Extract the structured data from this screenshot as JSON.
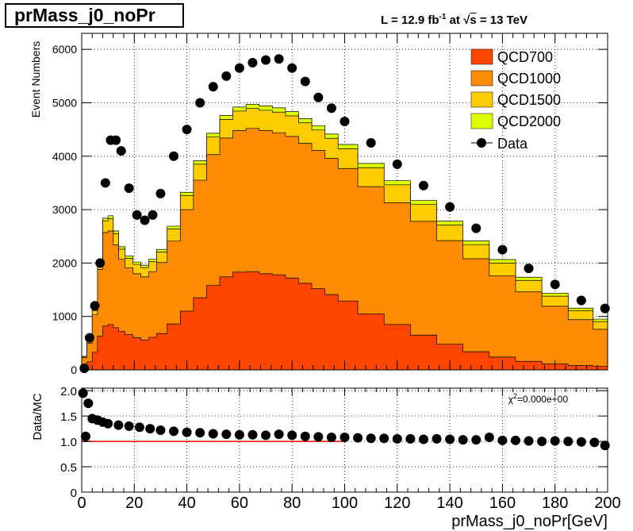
{
  "header": {
    "title": "prMass_j0_noPr",
    "lumi_prefix": "L = 12.9 fb",
    "lumi_exp": "-1",
    "lumi_mid": " at ",
    "lumi_sqrt": "s",
    "lumi_suffix": " = 13 TeV"
  },
  "chart_data": [
    {
      "type": "area",
      "ylabel": "Event Numbers",
      "xlim": [
        0,
        200
      ],
      "ylim": [
        0,
        6300
      ],
      "yticks": [
        0,
        1000,
        2000,
        3000,
        4000,
        5000,
        6000
      ],
      "legend_position": "top-right",
      "stacked": true,
      "x": [
        1,
        3,
        5,
        7,
        9,
        11,
        13,
        15,
        18,
        21,
        24,
        27,
        30,
        35,
        40,
        45,
        50,
        55,
        60,
        65,
        70,
        75,
        80,
        85,
        90,
        95,
        100,
        110,
        120,
        130,
        140,
        150,
        160,
        170,
        180,
        190,
        199
      ],
      "series": [
        {
          "name": "QCD700",
          "color": "#ff4500",
          "values": [
            80,
            150,
            330,
            630,
            820,
            850,
            790,
            720,
            660,
            600,
            560,
            610,
            680,
            860,
            1100,
            1350,
            1580,
            1740,
            1830,
            1840,
            1800,
            1780,
            1720,
            1620,
            1520,
            1410,
            1290,
            1050,
            850,
            650,
            480,
            340,
            240,
            160,
            110,
            80,
            70
          ]
        },
        {
          "name": "QCD1000",
          "color": "#ff8c00",
          "values": [
            150,
            350,
            700,
            1250,
            1750,
            1750,
            1550,
            1350,
            1250,
            1200,
            1180,
            1230,
            1330,
            1550,
            1900,
            2200,
            2450,
            2600,
            2650,
            2680,
            2680,
            2660,
            2650,
            2620,
            2590,
            2550,
            2480,
            2380,
            2280,
            2130,
            1940,
            1740,
            1520,
            1300,
            1080,
            860,
            690
          ]
        },
        {
          "name": "QCD1500",
          "color": "#ffcc00",
          "values": [
            20,
            40,
            80,
            140,
            220,
            230,
            210,
            190,
            180,
            175,
            175,
            185,
            195,
            225,
            265,
            300,
            330,
            350,
            365,
            375,
            380,
            385,
            385,
            385,
            380,
            375,
            370,
            355,
            335,
            315,
            290,
            265,
            240,
            215,
            190,
            165,
            145
          ]
        },
        {
          "name": "QCD2000",
          "color": "#ddff00",
          "values": [
            5,
            10,
            20,
            35,
            50,
            55,
            50,
            45,
            45,
            45,
            45,
            45,
            50,
            55,
            60,
            65,
            70,
            72,
            75,
            78,
            80,
            80,
            80,
            80,
            80,
            80,
            80,
            80,
            78,
            76,
            74,
            70,
            65,
            60,
            55,
            50,
            45
          ]
        }
      ],
      "data_series": {
        "name": "Data",
        "values": [
          30,
          600,
          1200,
          2000,
          3500,
          4300,
          4300,
          4100,
          3400,
          2900,
          2800,
          2900,
          3300,
          4000,
          4500,
          5000,
          5300,
          5500,
          5650,
          5750,
          5800,
          5820,
          5650,
          5400,
          5100,
          4900,
          4650,
          4250,
          3850,
          3450,
          3050,
          2650,
          2250,
          1900,
          1600,
          1300,
          1150
        ]
      }
    },
    {
      "type": "scatter",
      "xlabel": "prMass_j0_noPr[GeV]",
      "ylabel": "Data/MC",
      "xlim": [
        0,
        200
      ],
      "ylim": [
        0,
        2.05
      ],
      "yticks": [
        0,
        0.5,
        1.0,
        1.5,
        2.0
      ],
      "ytick_labels": [
        "0",
        "0.5",
        "1.0",
        "1.5",
        "2.0"
      ],
      "xticks": [
        0,
        20,
        40,
        60,
        80,
        100,
        120,
        140,
        160,
        180,
        200
      ],
      "reference_line": {
        "y": 1.0,
        "color": "#ff0000",
        "x_range": [
          0,
          100
        ]
      },
      "annotation_prefix": "χ",
      "annotation_exp": "2",
      "annotation_suffix": "=0.000e+00",
      "x": [
        0.5,
        1.5,
        2.5,
        4,
        6,
        8,
        10,
        14,
        18,
        22,
        26,
        30,
        35,
        40,
        45,
        50,
        55,
        60,
        65,
        70,
        75,
        80,
        85,
        90,
        95,
        100,
        105,
        110,
        115,
        120,
        125,
        130,
        135,
        140,
        145,
        150,
        155,
        160,
        165,
        170,
        175,
        180,
        185,
        190,
        195,
        199
      ],
      "values": [
        1.95,
        1.1,
        1.75,
        1.45,
        1.42,
        1.38,
        1.35,
        1.32,
        1.3,
        1.28,
        1.25,
        1.22,
        1.2,
        1.18,
        1.17,
        1.15,
        1.14,
        1.13,
        1.13,
        1.12,
        1.14,
        1.12,
        1.1,
        1.09,
        1.08,
        1.08,
        1.07,
        1.06,
        1.06,
        1.05,
        1.05,
        1.04,
        1.05,
        1.04,
        1.03,
        1.03,
        1.08,
        1.02,
        1.02,
        1.01,
        1.0,
        1.01,
        1.0,
        0.99,
        0.98,
        0.92
      ]
    }
  ]
}
